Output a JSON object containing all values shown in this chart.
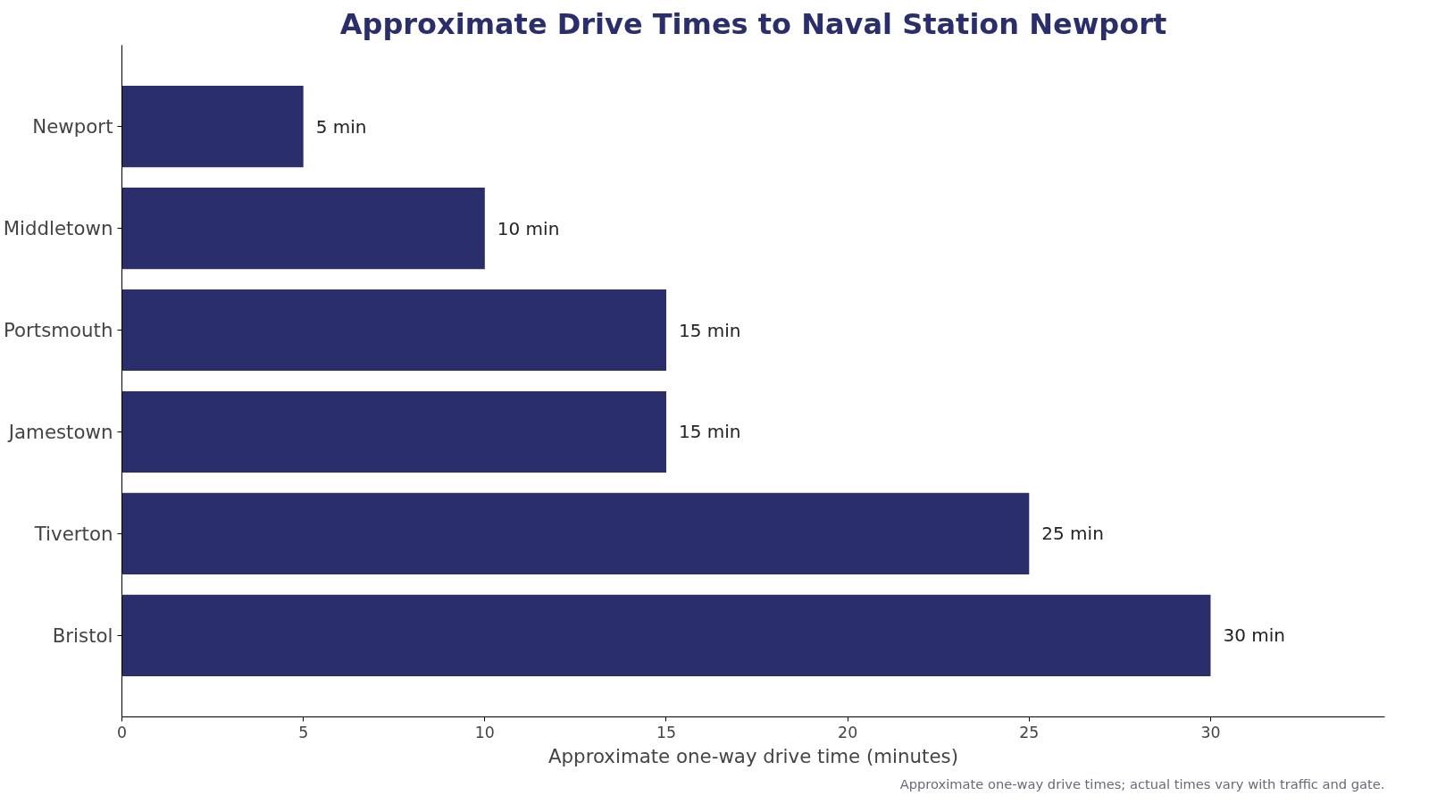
{
  "chart_data": {
    "type": "bar",
    "orientation": "horizontal",
    "title": "Approximate Drive Times to Naval Station Newport",
    "xlabel": "Approximate one-way drive time (minutes)",
    "categories": [
      "Newport",
      "Middletown",
      "Portsmouth",
      "Jamestown",
      "Tiverton",
      "Bristol"
    ],
    "values": [
      5,
      10,
      15,
      15,
      25,
      30
    ],
    "value_labels": [
      "5 min",
      "10 min",
      "15 min",
      "15 min",
      "25 min",
      "30 min"
    ],
    "color": "#2a2f6b",
    "xlim": [
      0,
      34.8
    ],
    "xticks": [
      0,
      5,
      10,
      15,
      20,
      25,
      30
    ],
    "grid": false,
    "annotations": [
      "Approximate one-way drive times; actual times vary with traffic and gate."
    ]
  }
}
